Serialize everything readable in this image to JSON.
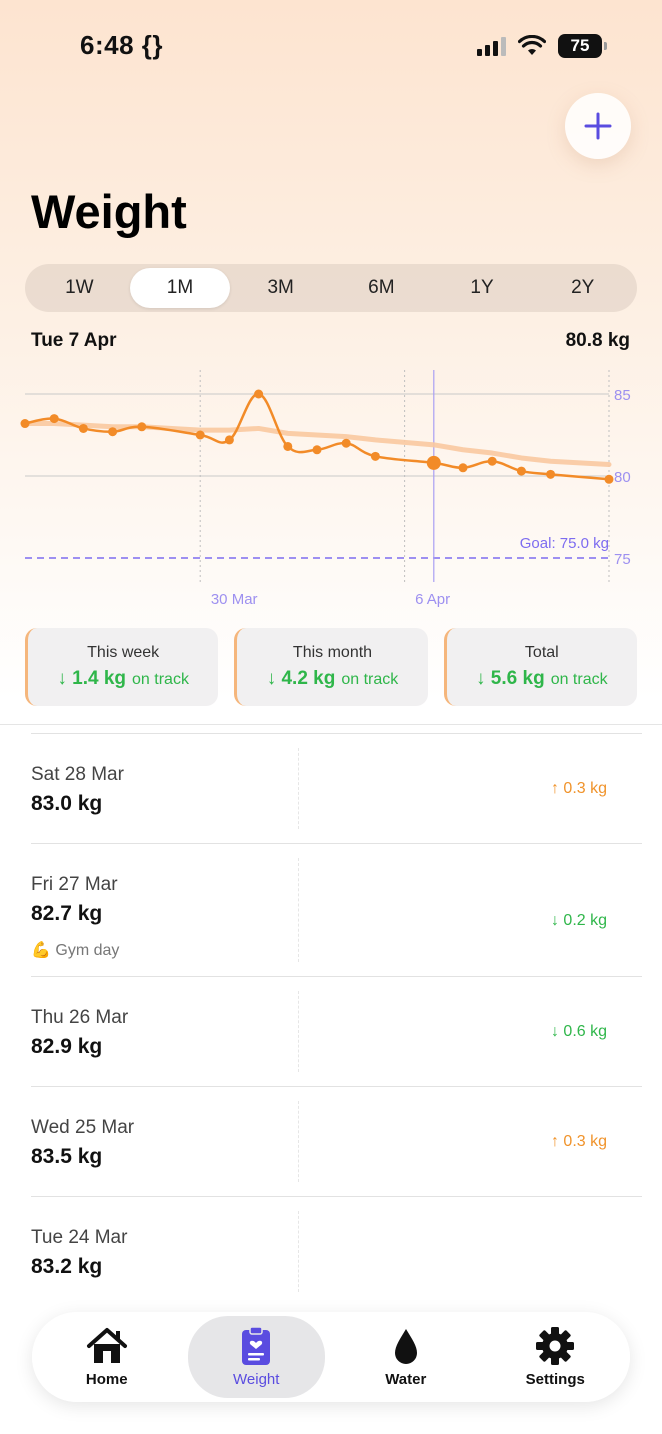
{
  "status": {
    "time": "6:48 {}",
    "battery": "75"
  },
  "header": {
    "title": "Weight"
  },
  "ranges": [
    {
      "label": "1W",
      "active": false
    },
    {
      "label": "1M",
      "active": true
    },
    {
      "label": "3M",
      "active": false
    },
    {
      "label": "6M",
      "active": false
    },
    {
      "label": "1Y",
      "active": false
    },
    {
      "label": "2Y",
      "active": false
    }
  ],
  "selection": {
    "date": "Tue 7 Apr",
    "value": "80.8 kg"
  },
  "chart_data": {
    "type": "line",
    "x": [
      "24 Mar",
      "25 Mar",
      "26 Mar",
      "27 Mar",
      "28 Mar",
      "30 Mar",
      "31 Mar",
      "1 Apr",
      "2 Apr",
      "3 Apr",
      "4 Apr",
      "5 Apr",
      "7 Apr",
      "8 Apr",
      "9 Apr",
      "10 Apr",
      "11 Apr",
      "13 Apr"
    ],
    "series": [
      {
        "values": [
          83.2,
          83.5,
          82.9,
          82.7,
          83.0,
          82.5,
          82.2,
          85.0,
          81.8,
          81.6,
          82.0,
          81.2,
          80.8,
          80.5,
          80.9,
          80.3,
          80.1,
          79.8
        ]
      },
      {
        "values": [
          83.2,
          83.2,
          83.1,
          83.0,
          83.0,
          82.8,
          82.8,
          82.9,
          82.6,
          82.5,
          82.4,
          82.2,
          81.9,
          81.6,
          81.4,
          81.1,
          80.9,
          80.7
        ]
      }
    ],
    "yticks": [
      "85",
      "80",
      "75"
    ],
    "xticks": [
      "30 Mar",
      "6 Apr"
    ],
    "ylim": [
      74,
      86
    ],
    "goal": {
      "value": 75.0,
      "label": "Goal: 75.0 kg"
    },
    "selected": "7 Apr",
    "colors": {
      "line": "#f28b28",
      "trend": "#f9c9a0",
      "goal": "#7d6cf0",
      "axis": "#9d90f0"
    }
  },
  "stats": [
    {
      "label": "This week",
      "value": "↓ 1.4 kg",
      "status": "on track"
    },
    {
      "label": "This month",
      "value": "↓ 4.2 kg",
      "status": "on track"
    },
    {
      "label": "Total",
      "value": "↓ 5.6 kg",
      "status": "on track"
    }
  ],
  "entries": [
    {
      "date": "Sat 28 Mar",
      "weight": "83.0 kg",
      "note": "",
      "delta": "↑ 0.3 kg",
      "direction": "up"
    },
    {
      "date": "Fri 27 Mar",
      "weight": "82.7 kg",
      "note": "💪 Gym day",
      "delta": "↓ 0.2 kg",
      "direction": "down"
    },
    {
      "date": "Thu 26 Mar",
      "weight": "82.9 kg",
      "note": "",
      "delta": "↓ 0.6 kg",
      "direction": "down"
    },
    {
      "date": "Wed 25 Mar",
      "weight": "83.5 kg",
      "note": "",
      "delta": "↑ 0.3 kg",
      "direction": "up"
    },
    {
      "date": "Tue 24 Mar",
      "weight": "83.2 kg",
      "note": "",
      "delta": "",
      "direction": ""
    }
  ],
  "tabs": [
    {
      "label": "Home",
      "icon": "home-icon",
      "active": false
    },
    {
      "label": "Weight",
      "icon": "clipboard-heart-icon",
      "active": true
    },
    {
      "label": "Water",
      "icon": "water-drop-icon",
      "active": false
    },
    {
      "label": "Settings",
      "icon": "gear-icon",
      "active": false
    }
  ]
}
